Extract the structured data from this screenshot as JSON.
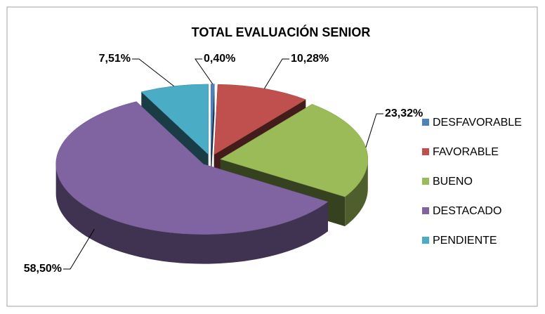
{
  "chart_data": {
    "type": "pie",
    "title": "TOTAL EVALUACIÓN SENIOR",
    "categories": [
      "DESFAVORABLE",
      "FAVORABLE",
      "BUENO",
      "DESTACADO",
      "PENDIENTE"
    ],
    "values": [
      0.4,
      10.28,
      23.32,
      58.5,
      7.51
    ],
    "value_labels": [
      "0,40%",
      "10,28%",
      "23,32%",
      "58,50%",
      "7,51%"
    ],
    "colors": [
      "#4f81bd",
      "#c0504d",
      "#9bbb59",
      "#8064a2",
      "#4bacc6"
    ],
    "legend": "right"
  }
}
